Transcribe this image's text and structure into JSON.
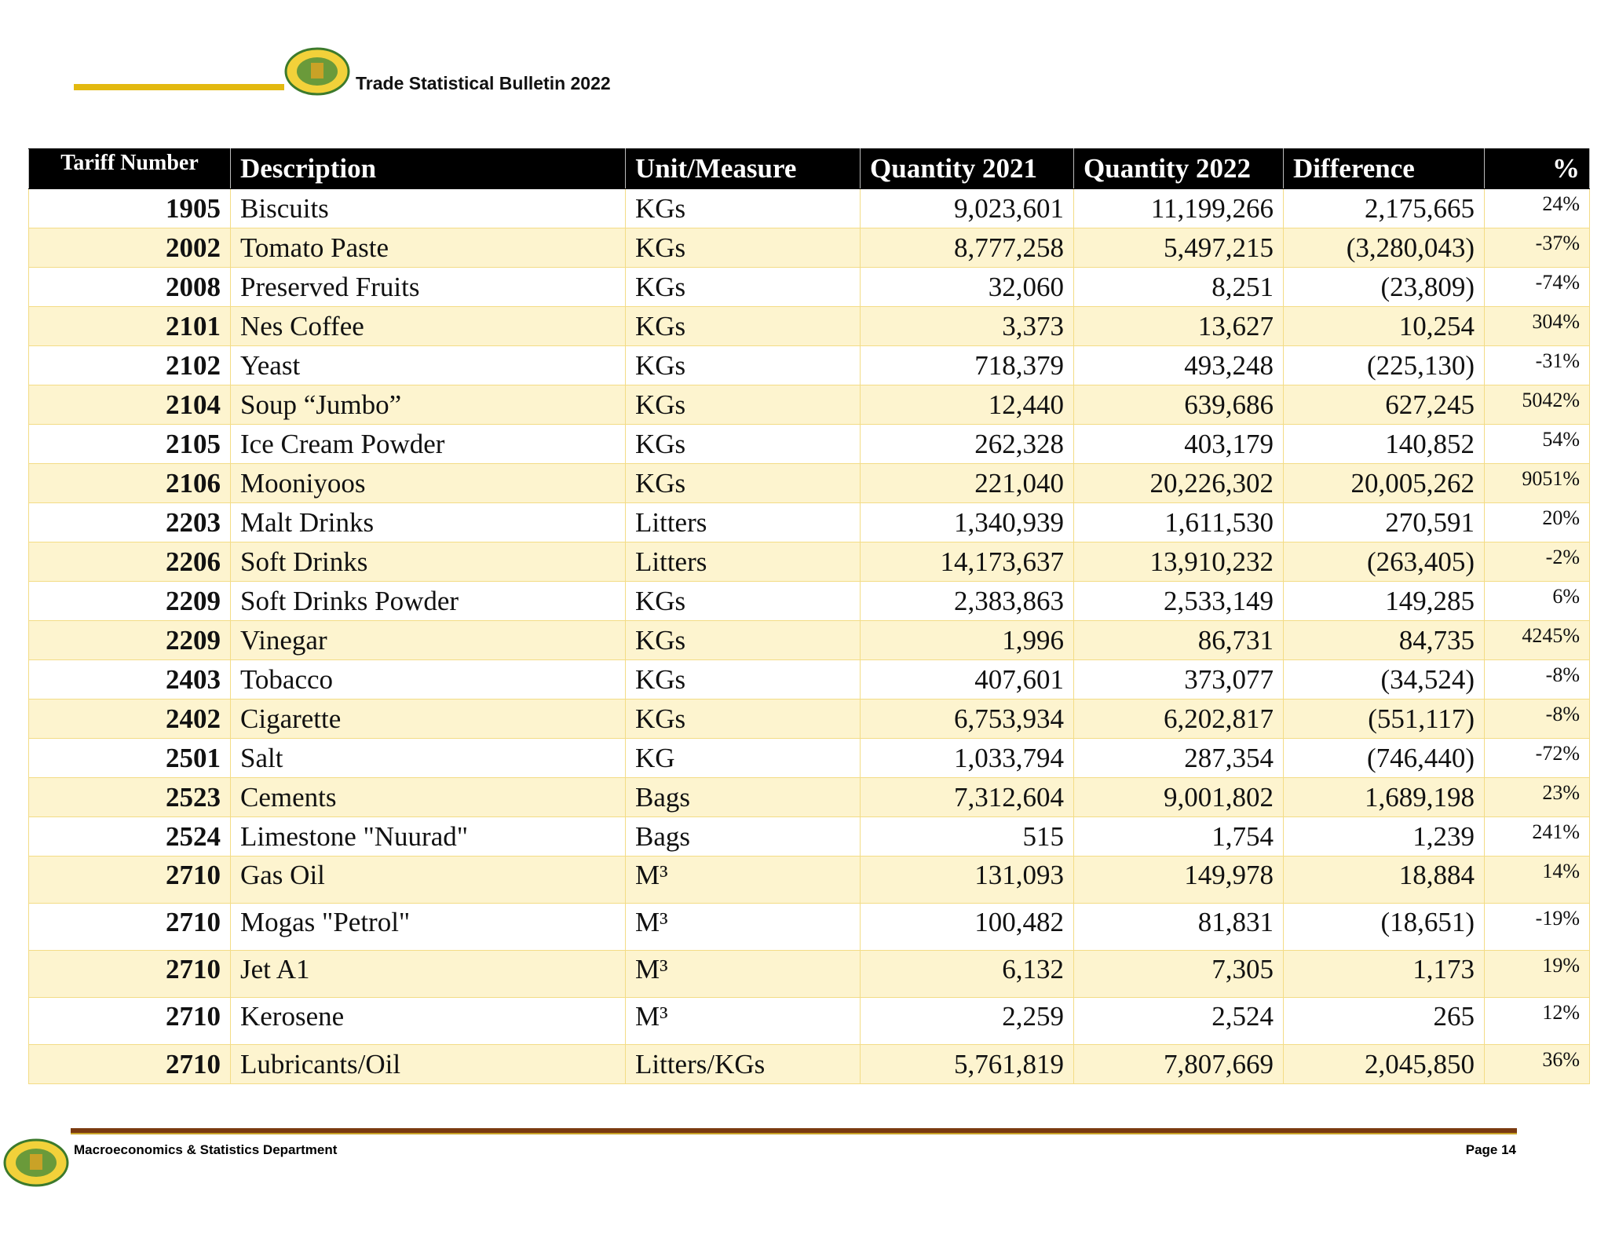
{
  "header": {
    "title": "Trade Statistical Bulletin 2022"
  },
  "table": {
    "columns": [
      "Tariff Number",
      "Description",
      "Unit/Measure",
      "Quantity 2021",
      "Quantity 2022",
      "Difference",
      "%"
    ],
    "rows": [
      [
        "1905",
        "Biscuits",
        "KGs",
        "9,023,601",
        "11,199,266",
        "2,175,665",
        "24%"
      ],
      [
        "2002",
        "Tomato Paste",
        "KGs",
        "8,777,258",
        "5,497,215",
        "(3,280,043)",
        "-37%"
      ],
      [
        "2008",
        "Preserved Fruits",
        "KGs",
        "32,060",
        "8,251",
        "(23,809)",
        "-74%"
      ],
      [
        "2101",
        "Nes Coffee",
        "KGs",
        "3,373",
        "13,627",
        "10,254",
        "304%"
      ],
      [
        "2102",
        "Yeast",
        "KGs",
        "718,379",
        "493,248",
        "(225,130)",
        "-31%"
      ],
      [
        "2104",
        "Soup “Jumbo”",
        "KGs",
        "12,440",
        "639,686",
        "627,245",
        "5042%"
      ],
      [
        "2105",
        "Ice Cream Powder",
        "KGs",
        "262,328",
        "403,179",
        "140,852",
        "54%"
      ],
      [
        "2106",
        "Mooniyoos",
        "KGs",
        "221,040",
        "20,226,302",
        "20,005,262",
        "9051%"
      ],
      [
        "2203",
        "Malt Drinks",
        "Litters",
        "1,340,939",
        "1,611,530",
        "270,591",
        "20%"
      ],
      [
        "2206",
        "Soft Drinks",
        "Litters",
        "14,173,637",
        "13,910,232",
        "(263,405)",
        "-2%"
      ],
      [
        "2209",
        "Soft Drinks Powder",
        "KGs",
        "2,383,863",
        "2,533,149",
        "149,285",
        "6%"
      ],
      [
        "2209",
        "Vinegar",
        "KGs",
        "1,996",
        "86,731",
        "84,735",
        "4245%"
      ],
      [
        "2403",
        "Tobacco",
        "KGs",
        "407,601",
        "373,077",
        "(34,524)",
        "-8%"
      ],
      [
        "2402",
        "Cigarette",
        "KGs",
        "6,753,934",
        "6,202,817",
        "(551,117)",
        "-8%"
      ],
      [
        "2501",
        "Salt",
        "KG",
        "1,033,794",
        "287,354",
        "(746,440)",
        "-72%"
      ],
      [
        "2523",
        "Cements",
        "Bags",
        "7,312,604",
        "9,001,802",
        "1,689,198",
        "23%"
      ],
      [
        "2524",
        "Limestone \"Nuurad\"",
        "Bags",
        "515",
        "1,754",
        "1,239",
        "241%"
      ],
      [
        "2710",
        "Gas Oil",
        "M³",
        "131,093",
        "149,978",
        "18,884",
        "14%"
      ],
      [
        "2710",
        "Mogas \"Petrol\"",
        "M³",
        "100,482",
        "81,831",
        "(18,651)",
        "-19%"
      ],
      [
        "2710",
        "Jet A1",
        "M³",
        "6,132",
        "7,305",
        "1,173",
        "19%"
      ],
      [
        "2710",
        "Kerosene",
        "M³",
        "2,259",
        "2,524",
        "265",
        "12%"
      ],
      [
        "2710",
        "Lubricants/Oil",
        "Litters/KGs",
        "5,761,819",
        "7,807,669",
        "2,045,850",
        "36%"
      ]
    ]
  },
  "footer": {
    "department": "Macroeconomics & Statistics Department",
    "page": "Page 14"
  }
}
